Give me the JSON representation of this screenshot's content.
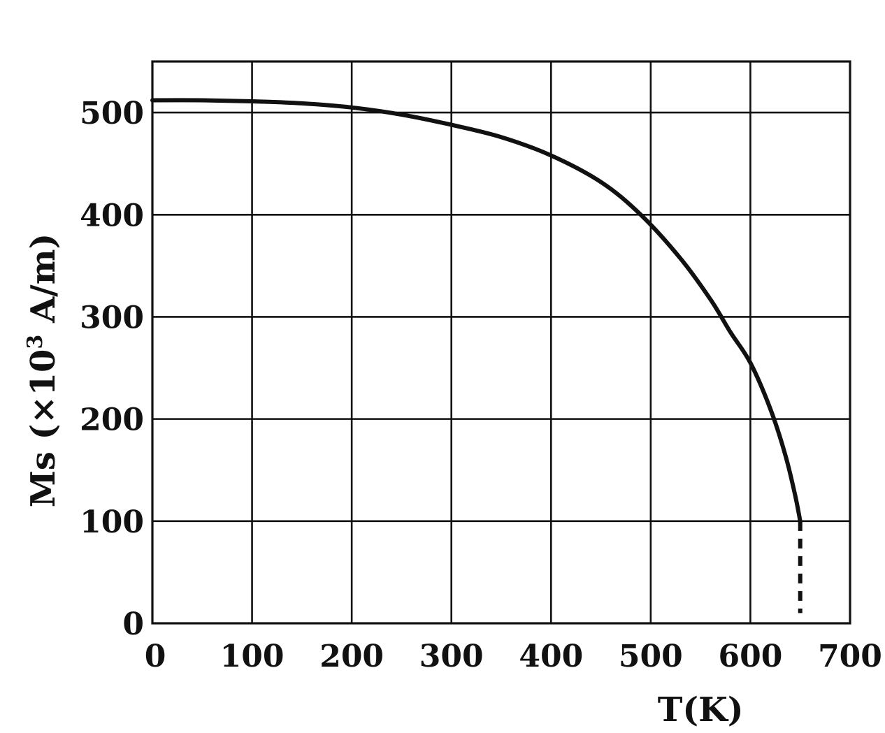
{
  "chart_data": {
    "type": "line",
    "xlabel": "T(K)",
    "ylabel_parts": {
      "main": "Ms (×10",
      "sup": "3",
      "tail": " A/m)"
    },
    "xlim": [
      0,
      700
    ],
    "ylim": [
      0,
      550
    ],
    "x_ticks": [
      0,
      100,
      200,
      300,
      400,
      500,
      600,
      700
    ],
    "x_tick_labels": [
      "0",
      "100",
      "200",
      "300",
      "400",
      "500",
      "600",
      "700"
    ],
    "y_ticks": [
      0,
      100,
      200,
      300,
      400,
      500
    ],
    "y_tick_labels": [
      "0",
      "100",
      "200",
      "300",
      "400",
      "500"
    ],
    "grid": true,
    "series": [
      {
        "style": "solid",
        "x": [
          0,
          50,
          100,
          150,
          200,
          250,
          300,
          350,
          400,
          450,
          490,
          530,
          560,
          580,
          600,
          620,
          635,
          645,
          650
        ],
        "y": [
          512,
          512,
          511,
          509,
          505,
          498,
          488,
          476,
          458,
          432,
          400,
          357,
          317,
          285,
          255,
          210,
          165,
          125,
          100
        ]
      },
      {
        "style": "dashed",
        "x": [
          650,
          650
        ],
        "y": [
          100,
          10
        ]
      }
    ]
  }
}
